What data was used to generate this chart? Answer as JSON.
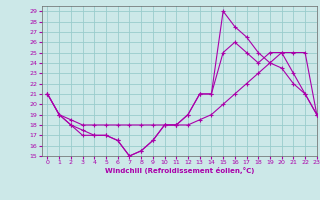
{
  "xlabel": "Windchill (Refroidissement éolien,°C)",
  "xlim": [
    -0.5,
    23
  ],
  "ylim": [
    15,
    29.5
  ],
  "yticks": [
    15,
    16,
    17,
    18,
    19,
    20,
    21,
    22,
    23,
    24,
    25,
    26,
    27,
    28,
    29
  ],
  "xticks": [
    0,
    1,
    2,
    3,
    4,
    5,
    6,
    7,
    8,
    9,
    10,
    11,
    12,
    13,
    14,
    15,
    16,
    17,
    18,
    19,
    20,
    21,
    22,
    23
  ],
  "bg_color": "#cce8e8",
  "grid_color": "#99cccc",
  "line_color": "#aa00aa",
  "line1_x": [
    0,
    1,
    2,
    3,
    4,
    5,
    6,
    7,
    8,
    9,
    10,
    11,
    12,
    13,
    14,
    15,
    16,
    17,
    18,
    19,
    20,
    21,
    22,
    23
  ],
  "line1_y": [
    21,
    19,
    18,
    17,
    17,
    17,
    16.5,
    15,
    15.5,
    16.5,
    18,
    18,
    19,
    21,
    21,
    29,
    27.5,
    26.5,
    25,
    24,
    23.5,
    22,
    21,
    19
  ],
  "line2_x": [
    0,
    1,
    2,
    3,
    4,
    5,
    6,
    7,
    8,
    9,
    10,
    11,
    12,
    13,
    14,
    15,
    16,
    17,
    18,
    19,
    20,
    21,
    22,
    23
  ],
  "line2_y": [
    21,
    19,
    18.5,
    18,
    18,
    18,
    18,
    18,
    18,
    18,
    18,
    18,
    18,
    18.5,
    19,
    20,
    21,
    22,
    23,
    24,
    25,
    25,
    25,
    19
  ],
  "line3_x": [
    0,
    1,
    2,
    3,
    4,
    5,
    6,
    7,
    8,
    9,
    10,
    11,
    12,
    13,
    14,
    15,
    16,
    17,
    18,
    19,
    20,
    21,
    22,
    23
  ],
  "line3_y": [
    21,
    19,
    18,
    17.5,
    17,
    17,
    16.5,
    15,
    15.5,
    16.5,
    18,
    18,
    19,
    21,
    21,
    25,
    26,
    25,
    24,
    25,
    25,
    23,
    21,
    19
  ]
}
